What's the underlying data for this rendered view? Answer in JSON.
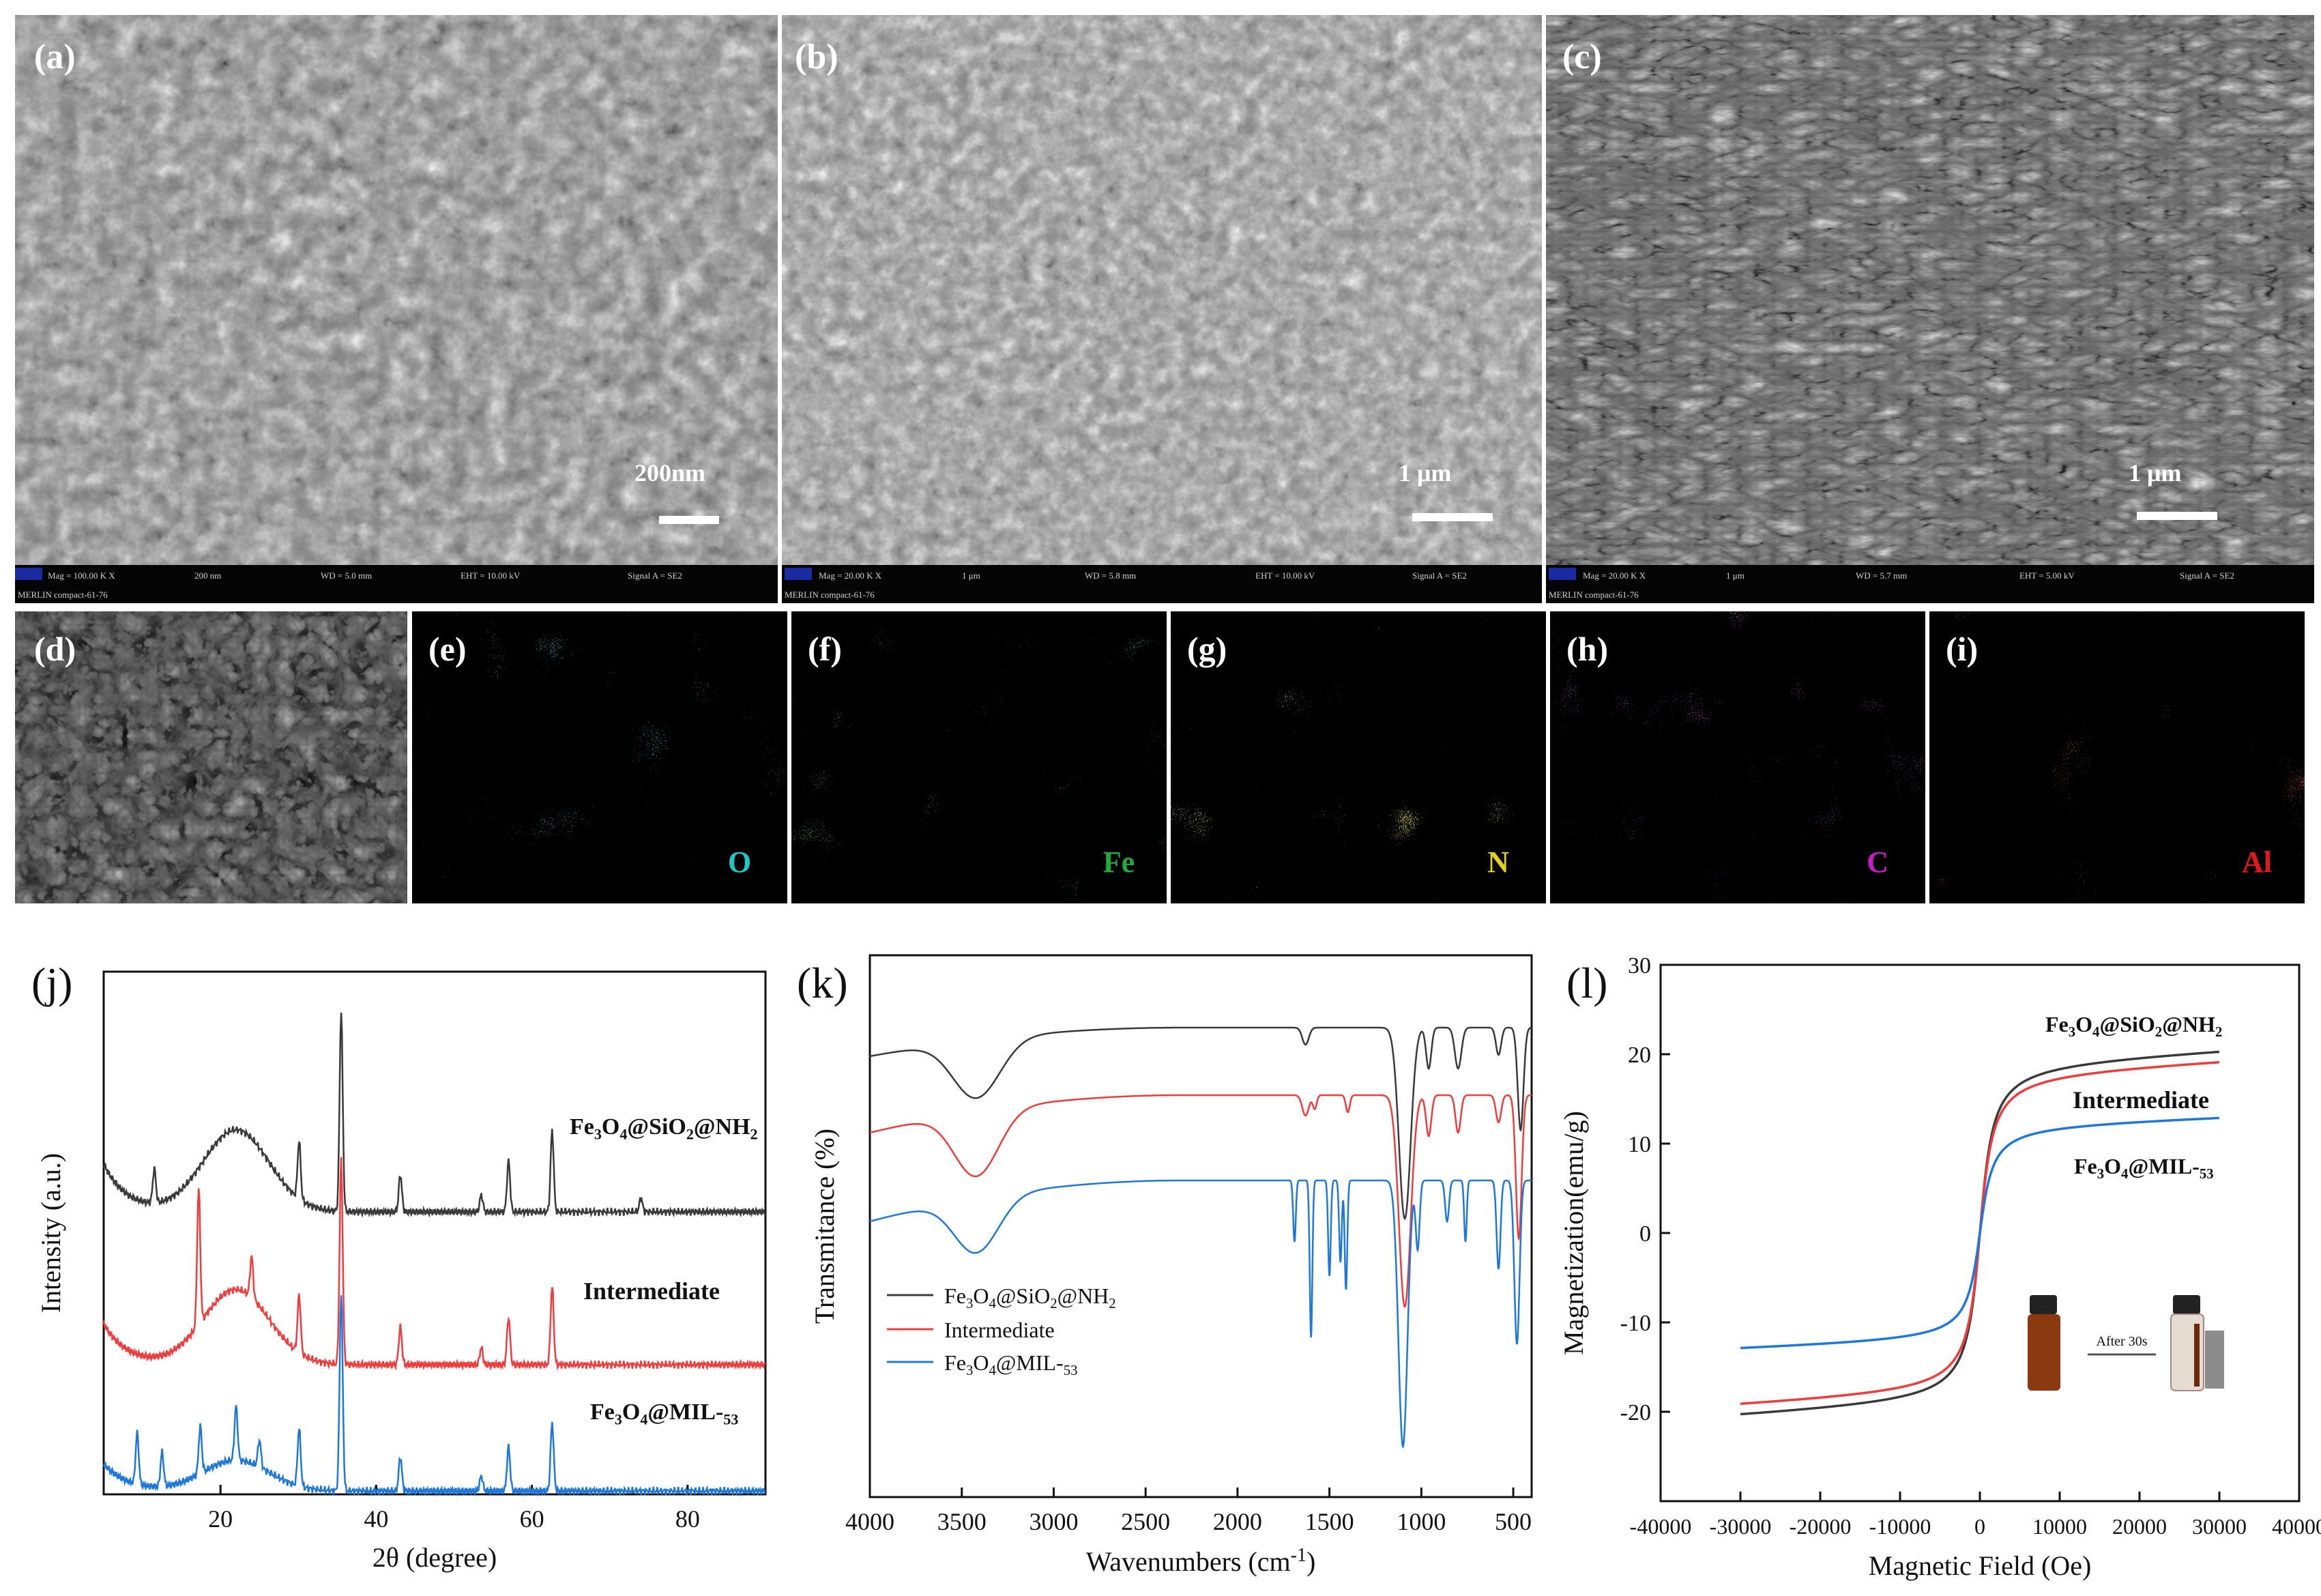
{
  "figure": {
    "panels": [
      {
        "id": "a",
        "label": "(a)",
        "scale_bar": "200nm",
        "footer": {
          "mag": "Mag = 100.00 K X",
          "size": "200 nm",
          "wd": "WD = 5.0 mm",
          "eht": "EHT = 10.00 kV",
          "signal": "Signal A = SE2",
          "instrument": "MERLIN compact-61-76"
        }
      },
      {
        "id": "b",
        "label": "(b)",
        "scale_bar": "1 μm",
        "footer": {
          "mag": "Mag = 20.00 K X",
          "size": "1 μm",
          "wd": "WD = 5.8 mm",
          "eht": "EHT = 10.00 kV",
          "signal": "Signal A = SE2",
          "instrument": "MERLIN compact-61-76"
        }
      },
      {
        "id": "c",
        "label": "(c)",
        "scale_bar": "1 μm",
        "footer": {
          "mag": "Mag = 20.00 K X",
          "size": "1 μm",
          "wd": "WD = 5.7 mm",
          "eht": "EHT = 5.00 kV",
          "signal": "Signal A = SE2",
          "instrument": "MERLIN compact-61-76"
        }
      },
      {
        "id": "d",
        "label": "(d)"
      },
      {
        "id": "e",
        "label": "(e)",
        "element": "O",
        "color": "#1ec8c8"
      },
      {
        "id": "f",
        "label": "(f)",
        "element": "Fe",
        "color": "#1faa3a"
      },
      {
        "id": "g",
        "label": "(g)",
        "element": "N",
        "color": "#e3d21a"
      },
      {
        "id": "h",
        "label": "(h)",
        "element": "C",
        "color": "#c21fc2"
      },
      {
        "id": "i",
        "label": "(i)",
        "element": "Al",
        "color": "#e01a1a"
      }
    ]
  },
  "chart_data": [
    {
      "id": "j",
      "panel_label": "(j)",
      "type": "line",
      "xlabel": "2θ (degree)",
      "ylabel": "Intensity (a.u.)",
      "xlim": [
        5,
        90
      ],
      "xticks": [
        20,
        40,
        60,
        80
      ],
      "series": [
        {
          "name": "Fe3O4@SiO2@NH2",
          "color": "#3a3a3a",
          "peaks": [
            11.5,
            30.1,
            35.5,
            43.1,
            53.5,
            57.0,
            62.6,
            74.0
          ]
        },
        {
          "name": "Intermediate",
          "color": "#f03c3c",
          "peaks": [
            17.2,
            24.0,
            30.1,
            35.5,
            43.1,
            53.5,
            57.0,
            62.6
          ]
        },
        {
          "name": "Fe3O4@MIL-53",
          "color": "#1e78dc",
          "peaks": [
            9.3,
            12.5,
            17.4,
            22.0,
            25.0,
            30.1,
            35.5,
            43.1,
            53.5,
            57.0,
            62.6
          ]
        }
      ]
    },
    {
      "id": "k",
      "panel_label": "(k)",
      "type": "line",
      "xlabel": "Wavenumbers (cm",
      "xlabel_sup": "-1",
      "xlabel_end": ")",
      "ylabel": "Transmitance (%)",
      "xlim": [
        4000,
        400
      ],
      "xticks": [
        4000,
        3500,
        3000,
        2500,
        2000,
        1500,
        1000,
        500
      ],
      "legend": {
        "position": "bottom-left"
      },
      "series": [
        {
          "name": "Fe3O4@SiO2@NH2",
          "color": "#3a3a3a"
        },
        {
          "name": "Intermediate",
          "color": "#f03c3c"
        },
        {
          "name": "Fe3O4@MIL-53",
          "color": "#1e78dc"
        }
      ]
    },
    {
      "id": "l",
      "panel_label": "(l)",
      "type": "line",
      "xlabel": "Magnetic Field (Oe)",
      "ylabel": "Magnetization(emu/g)",
      "xlim": [
        -40000,
        40000
      ],
      "ylim": [
        -30,
        30
      ],
      "xticks": [
        -40000,
        -30000,
        -20000,
        -10000,
        0,
        10000,
        20000,
        30000,
        40000
      ],
      "yticks": [
        -20,
        -10,
        0,
        10,
        20,
        30
      ],
      "series": [
        {
          "name": "Fe3O4@SiO2@NH2",
          "color": "#3a3a3a",
          "ms": 20.8
        },
        {
          "name": "Intermediate",
          "color": "#f03c3c",
          "ms": 19.6
        },
        {
          "name": "Fe3O4@MIL-53",
          "color": "#1e78dc",
          "ms": 13.2
        }
      ],
      "inset": {
        "label": "After 30s"
      }
    }
  ]
}
